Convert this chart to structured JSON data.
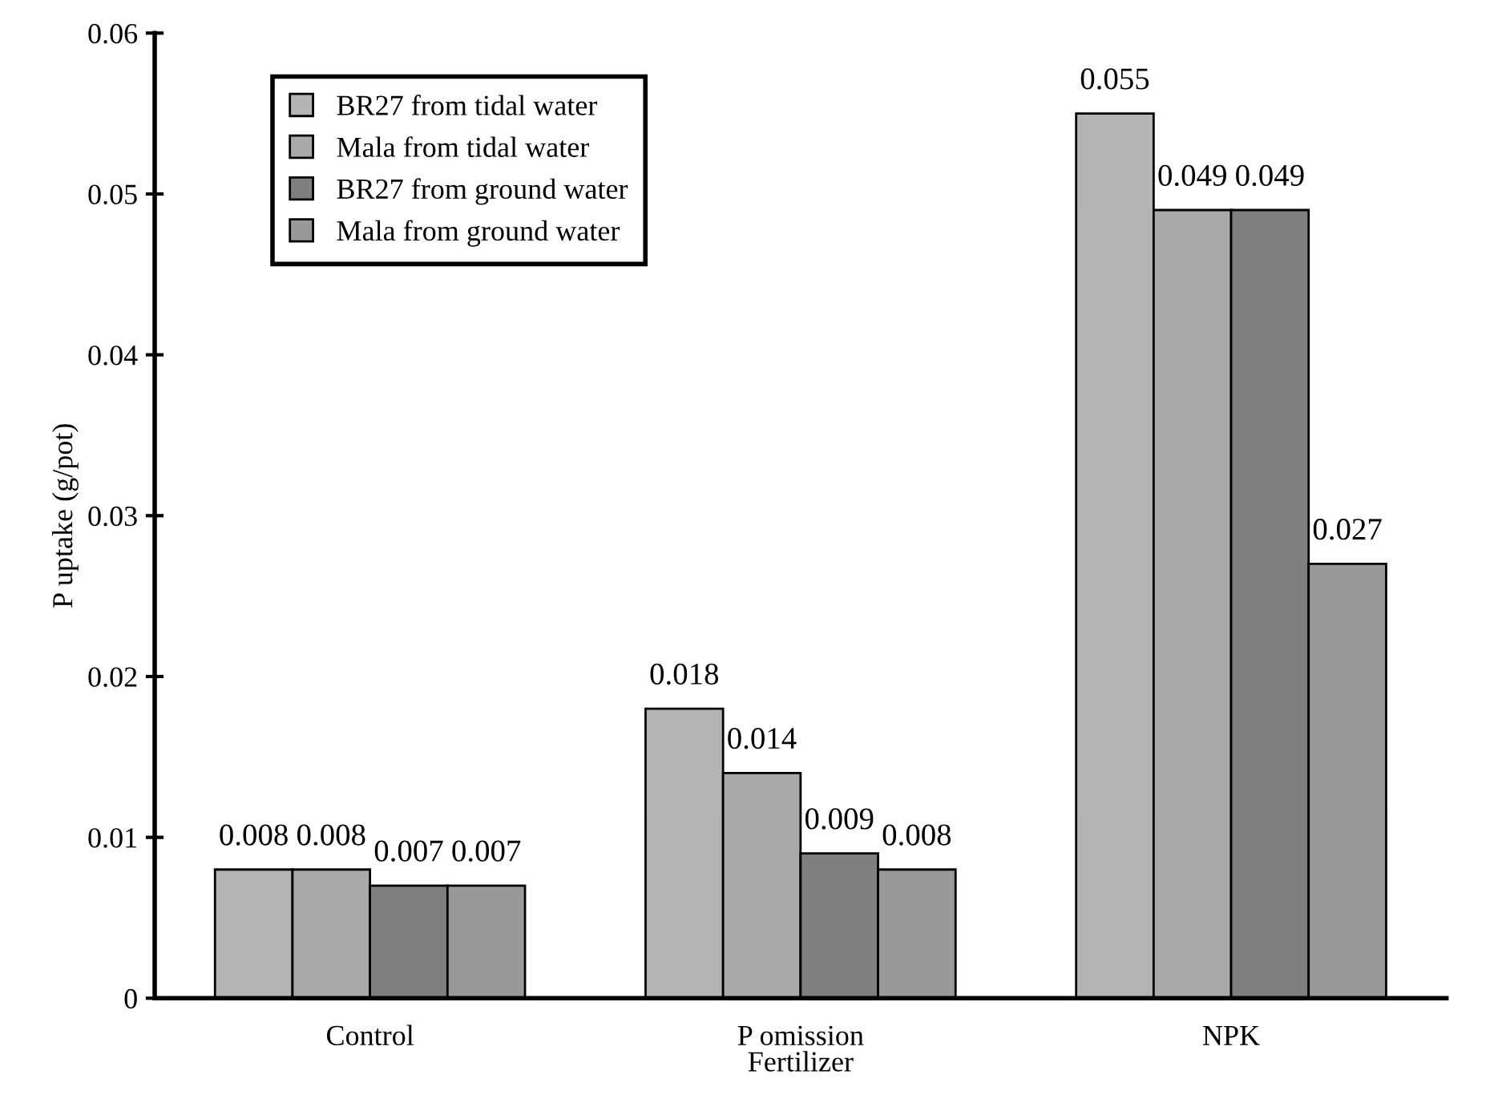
{
  "chart_data": {
    "type": "bar",
    "xlabel": "Fertilizer",
    "ylabel": "P uptake (g/pot)",
    "categories": [
      "Control",
      "P omission",
      "NPK"
    ],
    "series": [
      {
        "name": "BR27 from tidal water",
        "color": "#b4b4b4",
        "values": [
          0.008,
          0.018,
          0.055
        ]
      },
      {
        "name": "Mala from tidal water",
        "color": "#a9a9a9",
        "values": [
          0.008,
          0.014,
          0.049
        ]
      },
      {
        "name": "BR27 from ground water",
        "color": "#7f7f7f",
        "values": [
          0.007,
          0.009,
          0.049
        ]
      },
      {
        "name": "Mala from ground water",
        "color": "#999999",
        "values": [
          0.007,
          0.008,
          0.027
        ]
      }
    ],
    "ylim": [
      0,
      0.06
    ],
    "yticks": [
      0,
      0.01,
      0.02,
      0.03,
      0.04,
      0.05,
      0.06
    ],
    "data_labels": true,
    "legend": "top left",
    "grid": false
  }
}
